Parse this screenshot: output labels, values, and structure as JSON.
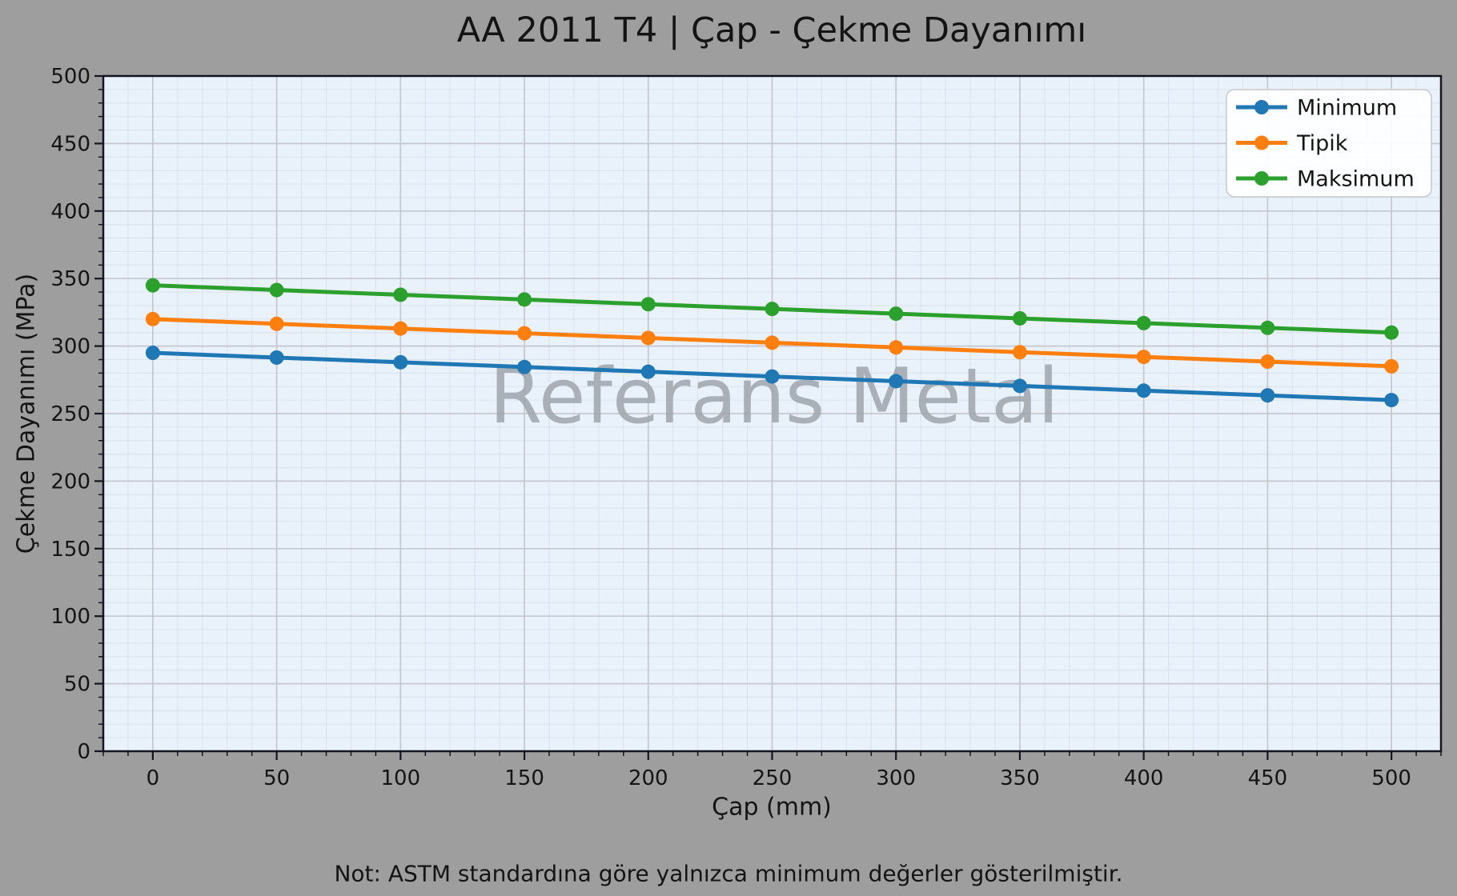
{
  "chart_data": {
    "type": "line",
    "title": "AA 2011 T4 | Çap - Çekme Dayanımı",
    "xlabel": "Çap (mm)",
    "ylabel": "Çekme Dayanımı (MPa)",
    "note": "Not: ASTM standardına göre yalnızca minimum değerler gösterilmiştir.",
    "watermark": "Referans Metal",
    "xlim": [
      -20,
      520
    ],
    "ylim": [
      0,
      500
    ],
    "x_ticks": [
      0,
      50,
      100,
      150,
      200,
      250,
      300,
      350,
      400,
      450,
      500
    ],
    "y_ticks": [
      0,
      50,
      100,
      150,
      200,
      250,
      300,
      350,
      400,
      450,
      500
    ],
    "minor_step": 10,
    "grid": true,
    "legend_position": "upper right",
    "x": [
      0,
      50,
      100,
      150,
      200,
      250,
      300,
      350,
      400,
      450,
      500
    ],
    "series": [
      {
        "name": "Minimum",
        "color": "#1f77b4",
        "values": [
          295,
          291.5,
          288,
          284.5,
          281,
          277.5,
          274,
          270.5,
          267,
          263.5,
          260
        ]
      },
      {
        "name": "Tipik",
        "color": "#ff7f0e",
        "values": [
          320,
          316.5,
          313,
          309.5,
          306,
          302.5,
          299,
          295.5,
          292,
          288.5,
          285
        ]
      },
      {
        "name": "Maksimum",
        "color": "#2ca02c",
        "values": [
          345,
          341.5,
          338,
          334.5,
          331,
          327.5,
          324,
          320.5,
          317,
          313.5,
          310
        ]
      }
    ],
    "colors": {
      "figure_bg": "#9e9e9e",
      "plot_bg": "#e9f1fb",
      "grid_major": "#c5c8ce",
      "grid_minor": "#dce2ed",
      "spine": "#15151f",
      "text": "#141414",
      "watermark": "#a0a5ac",
      "legend_bg": "#ffffff",
      "legend_border": "#c9c9c9"
    }
  }
}
